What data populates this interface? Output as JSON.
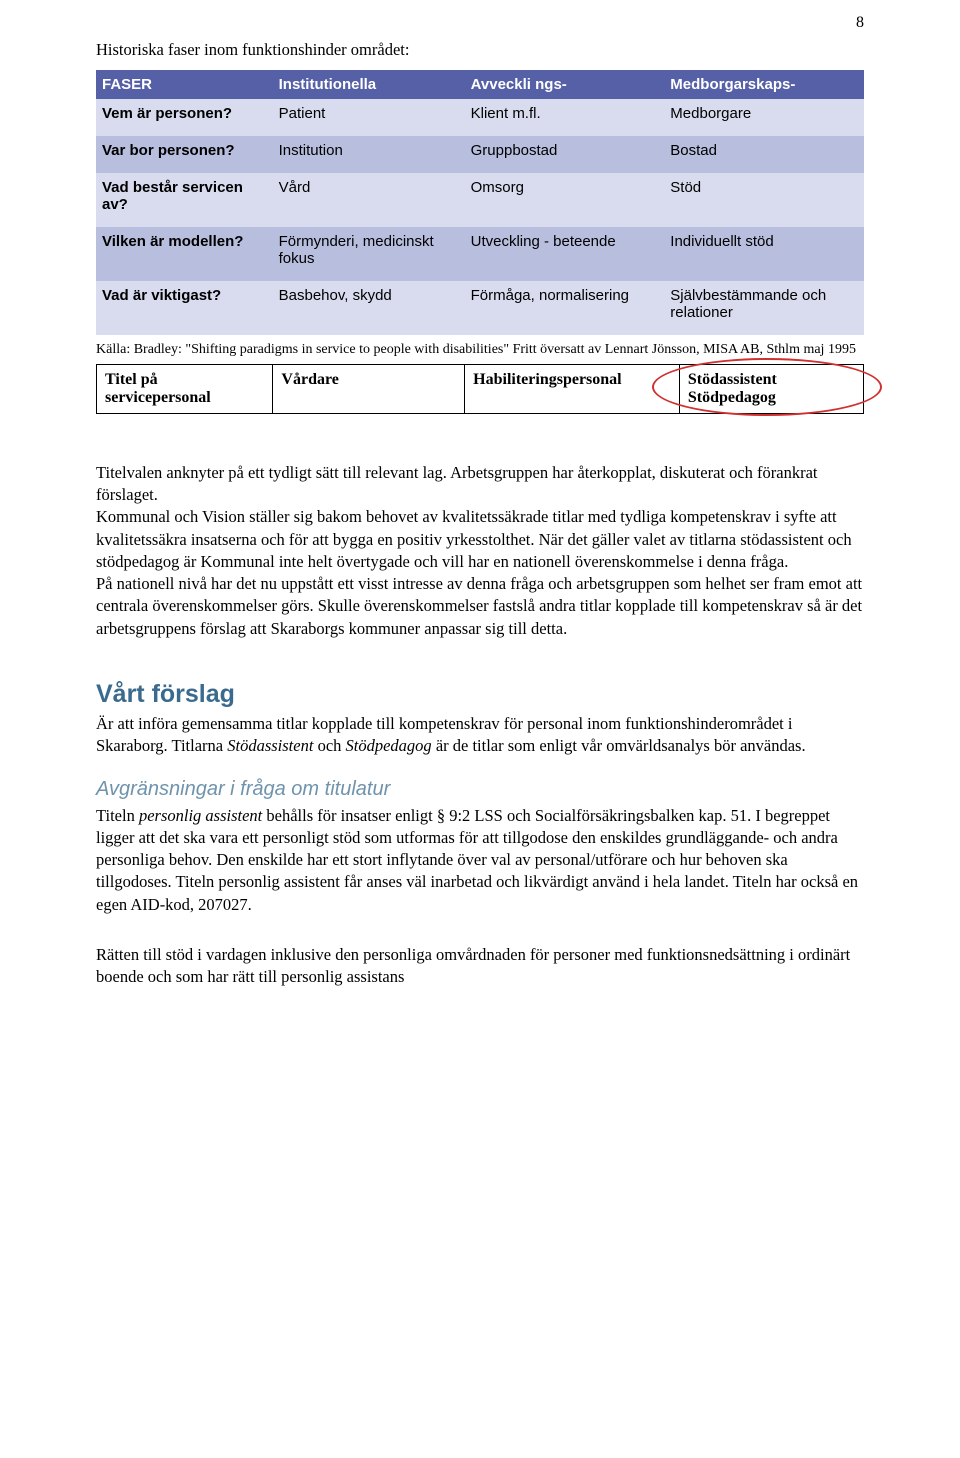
{
  "page_number": "8",
  "intro_line": "Historiska faser inom funktionshinder området:",
  "colors": {
    "header_bg": "#5560a6",
    "row_light": "#d9dcee",
    "row_dark": "#b8bedd",
    "section_heading": "#3b6a8f",
    "subsection_heading": "#6f93ad",
    "ellipse": "#d03030"
  },
  "table": {
    "columns": [
      "FASER",
      "Institutionella",
      "Avveckli ngs-",
      "Medborgarskaps-"
    ],
    "rows": [
      {
        "label": "Vem är personen?",
        "c2": "Patient",
        "c3": "Klient m.fl.",
        "c4": "Medborgare",
        "bg": "row_light"
      },
      {
        "label": "Var bor personen?",
        "c2": "Institution",
        "c3": "Gruppbostad",
        "c4": "Bostad",
        "bg": "row_dark"
      },
      {
        "label": "Vad består servicen av?",
        "c2": "Vård",
        "c3": "Omsorg",
        "c4": "Stöd",
        "bg": "row_light"
      },
      {
        "label": "Vilken är modellen?",
        "c2": "Förmynderi, medicinskt fokus",
        "c3": "Utveckling - beteende",
        "c4": "Individuellt stöd",
        "bg": "row_dark"
      },
      {
        "label": "Vad är viktigast?",
        "c2": "Basbehov, skydd",
        "c3": "Förmåga, normalisering",
        "c4": "Självbestämmande och relationer",
        "bg": "row_light"
      }
    ]
  },
  "source_note": "Källa: Bradley: \"Shifting paradigms in service to people with disabilities\" Fritt översatt av Lennart Jönsson, MISA AB, Sthlm maj 1995",
  "title_row": {
    "c1": "Titel på servicepersonal",
    "c2": "Vårdare",
    "c3": "Habiliteringspersonal",
    "c4a": "Stödassistent",
    "c4b": "Stödpedagog"
  },
  "body_paragraphs": [
    "Titelvalen anknyter på ett tydligt sätt till relevant lag. Arbetsgruppen har återkopplat, diskuterat och förankrat förslaget.",
    "Kommunal och Vision ställer sig bakom behovet av kvalitetssäkrade titlar med tydliga kompetenskrav i syfte att kvalitetssäkra insatserna och för att bygga en positiv yrkesstolthet. När det gäller valet av titlarna stödassistent och stödpedagog är Kommunal inte helt övertygade och vill har en nationell överenskommelse i denna fråga.",
    "På nationell nivå har det nu uppstått ett visst intresse av denna fråga och arbetsgruppen som helhet ser fram emot att centrala överenskommelser görs. Skulle överenskommelser fastslå andra titlar kopplade till kompetenskrav så är det arbetsgruppens förslag att Skaraborgs kommuner anpassar sig till detta."
  ],
  "section_heading": "Vårt förslag",
  "section_body_prefix": "Är att införa gemensamma titlar kopplade till kompetenskrav för personal inom funktionshinderområdet i Skaraborg. Titlarna ",
  "section_body_term1": "Stödassistent",
  "section_body_mid": " och ",
  "section_body_term2": "Stödpedagog",
  "section_body_suffix": " är de titlar som enligt vår omvärldsanalys bör användas.",
  "subsection_heading": "Avgränsningar i fråga om titulatur",
  "subsection_prefix": "Titeln ",
  "subsection_term": "personlig assistent",
  "subsection_body": " behålls för insatser enligt § 9:2 LSS och Socialförsäkringsbalken kap. 51. I begreppet ligger att det ska vara ett personligt stöd som utformas för att tillgodose den enskildes grundläggande- och andra personliga behov. Den enskilde har ett stort inflytande över val av personal/utförare och hur behoven ska tillgodoses. Titeln personlig assistent får anses väl inarbetad och likvärdigt använd i hela landet. Titeln har också en egen AID-kod, 207027.",
  "final_para": "Rätten till stöd i vardagen inklusive den personliga omvårdnaden för personer med funktionsnedsättning i ordinärt boende och som har rätt till personlig assistans"
}
